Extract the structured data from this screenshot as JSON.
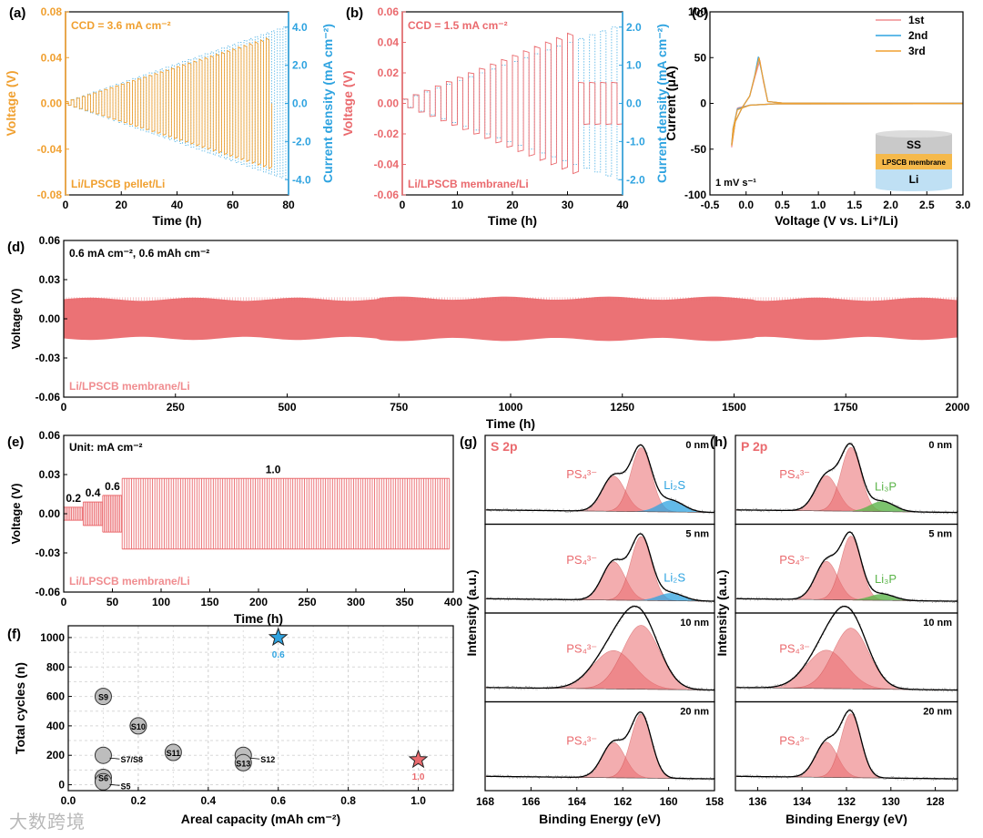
{
  "colors": {
    "orange": "#f0a030",
    "blue": "#2ea3e0",
    "red": "#ea6a6e",
    "pink": "#f08d90",
    "green": "#5bb449",
    "gray": "#9a9a9a",
    "black": "#000000"
  },
  "watermark": "大数跨境",
  "chart_data": [
    {
      "id": "a",
      "type": "line",
      "panel_label": "(a)",
      "annotation": "CCD = 3.6 mA cm⁻²",
      "cell_label": "Li/LPSCB pellet/Li",
      "xlabel": "Time (h)",
      "ylabel": "Voltage (V)",
      "y2label": "Current density (mA cm⁻²)",
      "xlim": [
        0,
        80
      ],
      "ylim": [
        -0.08,
        0.08
      ],
      "y2lim": [
        -4.8,
        4.8
      ],
      "xticks": [
        "0",
        "20",
        "40",
        "60",
        "80"
      ],
      "yticks": [
        "-0.08",
        "-0.04",
        "0.00",
        "0.04",
        "0.08"
      ],
      "y2ticks": [
        "-4.0",
        "-2.0",
        "0.0",
        "2.0",
        "4.0"
      ],
      "step_h": 2,
      "start_current": 0.1,
      "current_step": 0.1,
      "ccd": 3.6,
      "short_time_h": 74,
      "final_envelope_v": 0.057
    },
    {
      "id": "b",
      "type": "line",
      "panel_label": "(b)",
      "annotation": "CCD = 1.5 mA cm⁻²",
      "cell_label": "Li/LPSCB membrane/Li",
      "xlabel": "Time (h)",
      "ylabel": "Voltage (V)",
      "y2label": "Current density (mA cm⁻²)",
      "xlim": [
        0,
        40
      ],
      "ylim": [
        -0.06,
        0.06
      ],
      "y2lim": [
        -2.4,
        2.4
      ],
      "xticks": [
        "0",
        "10",
        "20",
        "30",
        "40"
      ],
      "yticks": [
        "-0.06",
        "-0.04",
        "-0.02",
        "0.00",
        "0.02",
        "0.04",
        "0.06"
      ],
      "y2ticks": [
        "-2.0",
        "-1.0",
        "0.0",
        "1.0",
        "2.0"
      ],
      "step_h": 2,
      "start_current": 0.1,
      "current_step": 0.1,
      "ccd": 1.5,
      "short_time_h": 31,
      "final_envelope_v": 0.046
    },
    {
      "id": "c",
      "type": "line",
      "panel_label": "(c)",
      "xlabel": "Voltage (V vs. Li⁺/Li)",
      "ylabel": "Current (μA)",
      "xlim": [
        -0.5,
        3.0
      ],
      "ylim": [
        -100,
        100
      ],
      "xticks": [
        "-0.5",
        "0.0",
        "0.5",
        "1.0",
        "1.5",
        "2.0",
        "2.5",
        "3.0"
      ],
      "yticks": [
        "-100",
        "-50",
        "0",
        "50",
        "100"
      ],
      "annotation": "1 mV s⁻¹",
      "series": [
        {
          "name": "1st",
          "peak_x": 0.19,
          "peak_y": 47,
          "min_y": -48
        },
        {
          "name": "2nd",
          "peak_x": 0.17,
          "peak_y": 51,
          "min_y": -45
        },
        {
          "name": "3rd",
          "peak_x": 0.18,
          "peak_y": 50,
          "min_y": -46
        }
      ],
      "inset_layers": [
        "SS",
        "LPSCB membrane",
        "Li"
      ]
    },
    {
      "id": "d",
      "type": "line",
      "panel_label": "(d)",
      "annotation": "0.6 mA cm⁻², 0.6 mAh cm⁻²",
      "cell_label": "Li/LPSCB membrane/Li",
      "xlabel": "Time (h)",
      "ylabel": "Voltage (V)",
      "xlim": [
        0,
        2000
      ],
      "ylim": [
        -0.06,
        0.06
      ],
      "xticks": [
        "0",
        "250",
        "500",
        "750",
        "1000",
        "1250",
        "1500",
        "1750",
        "2000"
      ],
      "yticks": [
        "-0.06",
        "-0.03",
        "0.00",
        "0.03",
        "0.06"
      ],
      "envelope_v": 0.015
    },
    {
      "id": "e",
      "type": "line",
      "panel_label": "(e)",
      "annotation": "Unit: mA cm⁻²",
      "cell_label": "Li/LPSCB membrane/Li",
      "xlabel": "Time (h)",
      "ylabel": "Voltage (V)",
      "xlim": [
        0,
        400
      ],
      "ylim": [
        -0.06,
        0.06
      ],
      "xticks": [
        "0",
        "50",
        "100",
        "150",
        "200",
        "250",
        "300",
        "350",
        "400"
      ],
      "yticks": [
        "-0.06",
        "-0.03",
        "0.00",
        "0.03",
        "0.06"
      ],
      "segments": [
        {
          "label": "0.2",
          "t0": 0,
          "t1": 20,
          "v": 0.005
        },
        {
          "label": "0.4",
          "t0": 20,
          "t1": 40,
          "v": 0.009
        },
        {
          "label": "0.6",
          "t0": 40,
          "t1": 60,
          "v": 0.014
        },
        {
          "label": "1.0",
          "t0": 60,
          "t1": 396,
          "v": 0.027
        }
      ]
    },
    {
      "id": "f",
      "type": "scatter",
      "panel_label": "(f)",
      "xlabel": "Areal capacity (mAh cm⁻²)",
      "ylabel": "Total cycles (n)",
      "xlim": [
        0,
        1.1
      ],
      "ylim": [
        -40,
        1080
      ],
      "xticks": [
        "0.0",
        "0.2",
        "0.4",
        "0.6",
        "0.8",
        "1.0"
      ],
      "yticks": [
        "0",
        "200",
        "400",
        "600",
        "800",
        "1000"
      ],
      "points": [
        {
          "label": "S9",
          "x": 0.1,
          "y": 600
        },
        {
          "label": "S10",
          "x": 0.2,
          "y": 400
        },
        {
          "label": "S7/S8",
          "x": 0.1,
          "y": 200
        },
        {
          "label": "S6",
          "x": 0.1,
          "y": 50
        },
        {
          "label": "S5",
          "x": 0.1,
          "y": 20
        },
        {
          "label": "S11",
          "x": 0.3,
          "y": 220
        },
        {
          "label": "S12",
          "x": 0.5,
          "y": 200
        },
        {
          "label": "S13",
          "x": 0.5,
          "y": 150
        }
      ],
      "stars": [
        {
          "label": "0.6",
          "x": 0.6,
          "y": 1000,
          "color": "blue"
        },
        {
          "label": "1.0",
          "x": 1.0,
          "y": 170,
          "color": "red"
        }
      ]
    },
    {
      "id": "g",
      "type": "area",
      "panel_label": "(g)",
      "element": "S 2p",
      "xlabel": "Binding Energy (eV)",
      "ylabel": "Intensity (a.u.)",
      "xlim": [
        168,
        158
      ],
      "xticks": [
        "168",
        "166",
        "164",
        "162",
        "160",
        "158"
      ],
      "species": [
        "PS₄³⁻",
        "Li₂S"
      ],
      "depths": [
        {
          "label": "0 nm",
          "main": 1.0,
          "shoulder": 0.55,
          "minor": 0.18
        },
        {
          "label": "5 nm",
          "main": 1.0,
          "shoulder": 0.6,
          "minor": 0.12
        },
        {
          "label": "10 nm",
          "main": 1.0,
          "shoulder": 0.6,
          "minor": 0
        },
        {
          "label": "20 nm",
          "main": 1.0,
          "shoulder": 0.55,
          "minor": 0
        }
      ],
      "peak_be": [
        161.2,
        162.4,
        159.9
      ]
    },
    {
      "id": "h",
      "type": "area",
      "panel_label": "(h)",
      "element": "P 2p",
      "xlabel": "Binding Energy (eV)",
      "ylabel": "Intensity (a.u.)",
      "xlim": [
        137,
        127
      ],
      "xticks": [
        "136",
        "134",
        "132",
        "130",
        "128"
      ],
      "species": [
        "PS₄³⁻",
        "Li₃P"
      ],
      "depths": [
        {
          "label": "0 nm",
          "main": 1.0,
          "shoulder": 0.55,
          "minor": 0.16
        },
        {
          "label": "5 nm",
          "main": 1.0,
          "shoulder": 0.6,
          "minor": 0.1
        },
        {
          "label": "10 nm",
          "main": 0.95,
          "shoulder": 0.6,
          "minor": 0
        },
        {
          "label": "20 nm",
          "main": 1.0,
          "shoulder": 0.55,
          "minor": 0
        }
      ],
      "peak_be": [
        131.8,
        132.9,
        130.4
      ]
    }
  ]
}
